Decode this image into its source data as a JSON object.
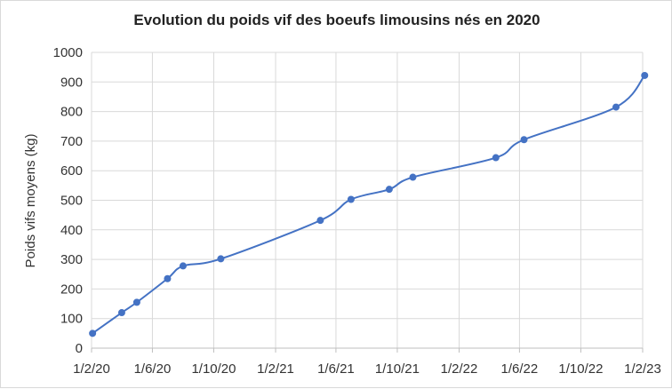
{
  "chart_data": {
    "type": "line",
    "title": "Evolution du poids vif des boeufs limousins nés en 2020",
    "xlabel": "",
    "ylabel": "Poids vifs moyens (kg)",
    "ylim": [
      0,
      1000
    ],
    "yticks": [
      0,
      100,
      200,
      300,
      400,
      500,
      600,
      700,
      800,
      900,
      1000
    ],
    "xlim": [
      "2020-02-01",
      "2023-02-01"
    ],
    "xticks": [
      {
        "date": "2020-02-01",
        "label": "1/2/20"
      },
      {
        "date": "2020-06-01",
        "label": "1/6/20"
      },
      {
        "date": "2020-10-01",
        "label": "1/10/20"
      },
      {
        "date": "2021-02-01",
        "label": "1/2/21"
      },
      {
        "date": "2021-06-01",
        "label": "1/6/21"
      },
      {
        "date": "2021-10-01",
        "label": "1/10/21"
      },
      {
        "date": "2022-02-01",
        "label": "1/2/22"
      },
      {
        "date": "2022-06-01",
        "label": "1/6/22"
      },
      {
        "date": "2022-10-01",
        "label": "1/10/22"
      },
      {
        "date": "2023-02-01",
        "label": "1/2/23"
      }
    ],
    "grid": "vertical and horizontal",
    "series": [
      {
        "color": "#4472c4",
        "marker": "circle",
        "smooth": true,
        "points": [
          {
            "x": "2020-02-03",
            "y": 50
          },
          {
            "x": "2020-04-01",
            "y": 120
          },
          {
            "x": "2020-05-01",
            "y": 155
          },
          {
            "x": "2020-07-01",
            "y": 235
          },
          {
            "x": "2020-08-01",
            "y": 278
          },
          {
            "x": "2020-10-15",
            "y": 302
          },
          {
            "x": "2021-05-01",
            "y": 432
          },
          {
            "x": "2021-07-01",
            "y": 503
          },
          {
            "x": "2021-09-15",
            "y": 537
          },
          {
            "x": "2021-11-01",
            "y": 578
          },
          {
            "x": "2022-04-15",
            "y": 644
          },
          {
            "x": "2022-06-10",
            "y": 705
          },
          {
            "x": "2022-12-10",
            "y": 815
          },
          {
            "x": "2023-02-05",
            "y": 922
          }
        ]
      }
    ]
  }
}
